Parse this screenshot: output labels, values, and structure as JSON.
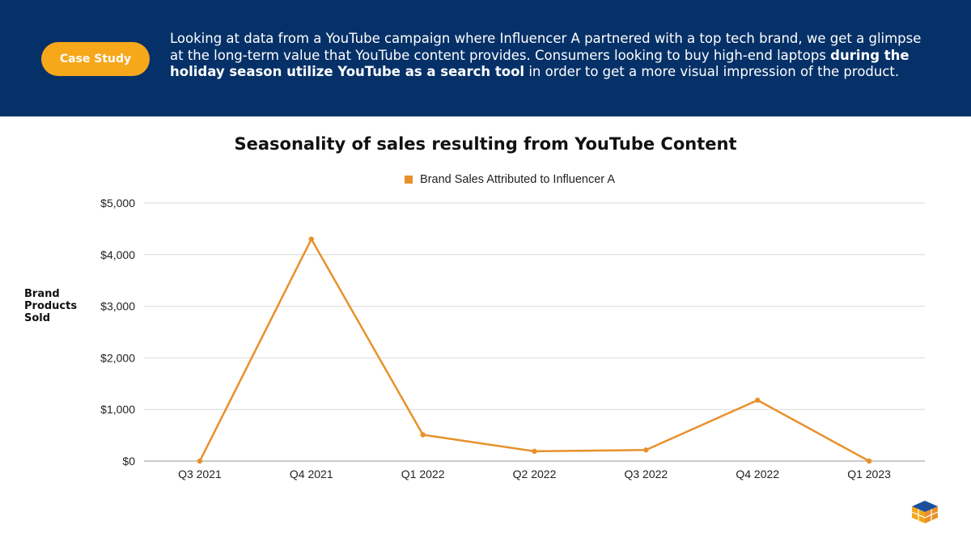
{
  "header": {
    "badge": "Case Study",
    "intro_part1": "Looking at data from a YouTube campaign where Influencer A partnered with a top tech brand, we get a glimpse at the long-term value that YouTube content provides.   Consumers looking to buy high-end laptops ",
    "intro_bold": "during the holiday season utilize YouTube as a search tool",
    "intro_part2": " in order to get a more visual impression of the product."
  },
  "colors": {
    "header_bg": "#063168",
    "badge_bg": "#f6a71a",
    "series": "#e8912b",
    "grid": "#d9d9d9"
  },
  "chart_data": {
    "type": "line",
    "title": "Seasonality of sales resulting from YouTube Content",
    "ylabel": "Brand Products Sold",
    "xlabel": "",
    "categories": [
      "Q3 2021",
      "Q4 2021",
      "Q1 2022",
      "Q2 2022",
      "Q3 2022",
      "Q4 2022",
      "Q1 2023"
    ],
    "series": [
      {
        "name": "Brand Sales Attributed to Influencer A",
        "values": [
          0,
          4300,
          510,
          190,
          215,
          1180,
          0
        ]
      }
    ],
    "ylim": [
      0,
      5000
    ],
    "yticks": [
      0,
      1000,
      2000,
      3000,
      4000,
      5000
    ],
    "ytick_labels": [
      "$0",
      "$1,000",
      "$2,000",
      "$3,000",
      "$4,000",
      "$5,000"
    ],
    "grid": true,
    "legend_position": "top-center"
  },
  "logo": {
    "icon": "cube-logo-icon"
  }
}
